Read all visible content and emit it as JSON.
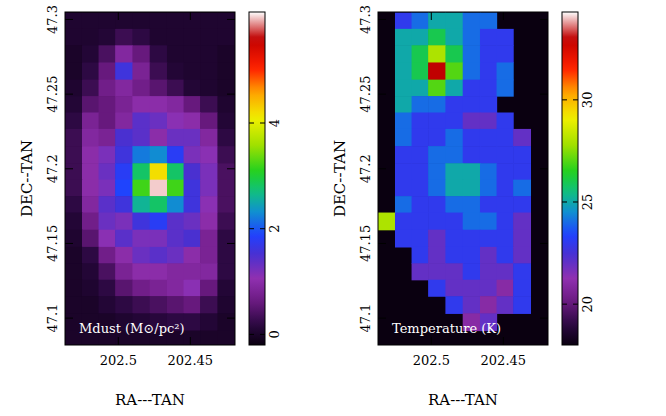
{
  "chart_data": [
    {
      "type": "heatmap",
      "xlabel": "RA---TAN",
      "ylabel": "DEC--TAN",
      "annotation": "Mdust (M⊙/pc²)",
      "xlim": [
        202.537,
        202.419
      ],
      "ylim": [
        47.082,
        47.305
      ],
      "xticks": [
        202.5,
        202.45
      ],
      "yticks": [
        47.1,
        47.15,
        47.2,
        47.25,
        47.3
      ],
      "x": [
        202.531,
        202.519,
        202.508,
        202.496,
        202.484,
        202.472,
        202.46,
        202.449,
        202.437,
        202.425
      ],
      "y": [
        47.299,
        47.288,
        47.277,
        47.265,
        47.254,
        47.243,
        47.232,
        47.221,
        47.209,
        47.198,
        47.187,
        47.176,
        47.165,
        47.153,
        47.142,
        47.131,
        47.12,
        47.109,
        47.097,
        47.086
      ],
      "values": [
        [
          0.05,
          0.05,
          0.05,
          0.05,
          0.05,
          0.05,
          0.05,
          0.05,
          0.05,
          0.05
        ],
        [
          0.05,
          0.05,
          0.1,
          0.3,
          0.2,
          0.05,
          0.05,
          0.05,
          0.05,
          0.05
        ],
        [
          0,
          0.1,
          0.4,
          0.9,
          0.6,
          0.2,
          0.05,
          0.05,
          0.05,
          0
        ],
        [
          0,
          0.2,
          0.6,
          1.6,
          0.8,
          0.3,
          0.1,
          0.05,
          0.05,
          0
        ],
        [
          0.05,
          0.3,
          0.7,
          0.9,
          0.7,
          0.5,
          0.3,
          0.1,
          0.05,
          0
        ],
        [
          0.1,
          0.5,
          0.6,
          0.8,
          1.0,
          1.0,
          0.9,
          0.6,
          0.3,
          0.05
        ],
        [
          0.2,
          0.8,
          0.6,
          0.9,
          1.4,
          1.3,
          1.1,
          1.0,
          0.6,
          0.1
        ],
        [
          0.3,
          0.9,
          0.8,
          1.5,
          1.4,
          1.0,
          1.3,
          1.3,
          0.9,
          0.2
        ],
        [
          0.3,
          1.0,
          1.2,
          1.6,
          2.2,
          2.3,
          1.8,
          1.2,
          1.1,
          0.3
        ],
        [
          0.3,
          1.0,
          1.3,
          1.8,
          2.8,
          4.2,
          2.8,
          1.5,
          1.2,
          0.4
        ],
        [
          0.3,
          1.0,
          1.2,
          1.9,
          3.2,
          6.0,
          3.2,
          1.6,
          1.2,
          0.4
        ],
        [
          0.2,
          0.9,
          1.4,
          1.6,
          2.6,
          2.8,
          2.3,
          1.6,
          1.1,
          0.4
        ],
        [
          0.1,
          0.7,
          1.3,
          1.2,
          1.6,
          1.8,
          1.4,
          1.3,
          1.0,
          0.3
        ],
        [
          0.05,
          0.5,
          1.1,
          1.4,
          1.2,
          1.2,
          1.4,
          1.5,
          0.8,
          0.2
        ],
        [
          0,
          0.2,
          0.7,
          1.0,
          1.3,
          1.4,
          1.3,
          1.0,
          0.8,
          0.2
        ],
        [
          0,
          0.1,
          0.4,
          0.8,
          1.0,
          1.0,
          0.9,
          0.9,
          0.9,
          0.2
        ],
        [
          0,
          0.05,
          0.2,
          0.5,
          0.7,
          0.8,
          0.9,
          1.1,
          0.6,
          0.1
        ],
        [
          0,
          0,
          0.1,
          0.2,
          0.3,
          0.4,
          0.5,
          0.6,
          0.3,
          0.05
        ],
        [
          0,
          0,
          0,
          0.05,
          0.1,
          0.15,
          0.2,
          0.2,
          0.1,
          0
        ],
        [
          0,
          0,
          0,
          0,
          0,
          0,
          0,
          0,
          0,
          0
        ]
      ],
      "colorbar": {
        "range": [
          -0.2,
          6.1
        ],
        "ticks": [
          0,
          2,
          4
        ]
      }
    },
    {
      "type": "heatmap",
      "xlabel": "RA---TAN",
      "ylabel": "DEC--TAN",
      "annotation": "Temperature (K)",
      "xlim": [
        202.537,
        202.419
      ],
      "ylim": [
        47.082,
        47.305
      ],
      "xticks": [
        202.5,
        202.45
      ],
      "yticks": [
        47.1,
        47.15,
        47.2,
        47.25,
        47.3
      ],
      "x": [
        202.531,
        202.519,
        202.508,
        202.496,
        202.484,
        202.472,
        202.46,
        202.449,
        202.437,
        202.425
      ],
      "y": [
        47.299,
        47.288,
        47.277,
        47.265,
        47.254,
        47.243,
        47.232,
        47.221,
        47.209,
        47.198,
        47.187,
        47.176,
        47.165,
        47.153,
        47.142,
        47.131,
        47.12,
        47.109,
        47.097,
        47.086
      ],
      "values": [
        [
          null,
          23,
          24,
          25,
          25,
          24,
          24,
          null,
          null,
          null
        ],
        [
          null,
          25,
          25,
          26,
          25,
          24,
          23,
          23,
          null,
          null
        ],
        [
          null,
          25,
          26,
          28,
          26,
          24,
          23,
          23,
          null,
          null
        ],
        [
          null,
          25,
          26,
          33,
          27,
          24,
          23,
          24,
          null,
          null
        ],
        [
          null,
          25,
          25,
          27,
          25,
          23,
          23,
          24,
          null,
          null
        ],
        [
          null,
          25,
          24,
          24,
          23,
          23,
          23,
          null,
          null,
          null
        ],
        [
          null,
          24,
          23,
          23,
          23,
          22,
          22,
          23,
          null,
          null
        ],
        [
          null,
          24,
          23,
          23,
          24,
          23,
          23,
          23,
          22,
          null
        ],
        [
          null,
          23,
          23,
          24,
          24,
          23,
          23,
          23,
          23,
          null
        ],
        [
          null,
          23,
          23,
          24,
          25,
          25,
          24,
          23,
          23,
          null
        ],
        [
          null,
          23,
          23,
          24,
          25,
          25,
          24,
          23,
          24,
          null
        ],
        [
          null,
          24,
          23,
          23,
          24,
          24,
          23,
          23,
          23,
          null
        ],
        [
          28,
          23,
          23,
          23,
          23,
          24,
          24,
          23,
          22,
          null
        ],
        [
          null,
          23,
          23,
          22,
          23,
          23,
          23,
          23,
          22,
          null
        ],
        [
          null,
          null,
          23,
          22,
          23,
          23,
          22,
          23,
          22,
          null
        ],
        [
          null,
          null,
          22,
          22,
          22,
          23,
          22,
          22,
          23,
          null
        ],
        [
          null,
          null,
          null,
          23,
          22,
          22,
          22,
          21,
          23,
          null
        ],
        [
          null,
          null,
          null,
          null,
          23,
          22,
          21,
          22,
          23,
          null
        ],
        [
          null,
          null,
          null,
          null,
          null,
          21,
          22,
          null,
          null,
          null
        ],
        [
          null,
          null,
          null,
          null,
          null,
          null,
          null,
          null,
          null,
          null
        ]
      ],
      "colorbar": {
        "range": [
          18,
          34.3
        ],
        "ticks": [
          20,
          25,
          30
        ]
      }
    }
  ]
}
